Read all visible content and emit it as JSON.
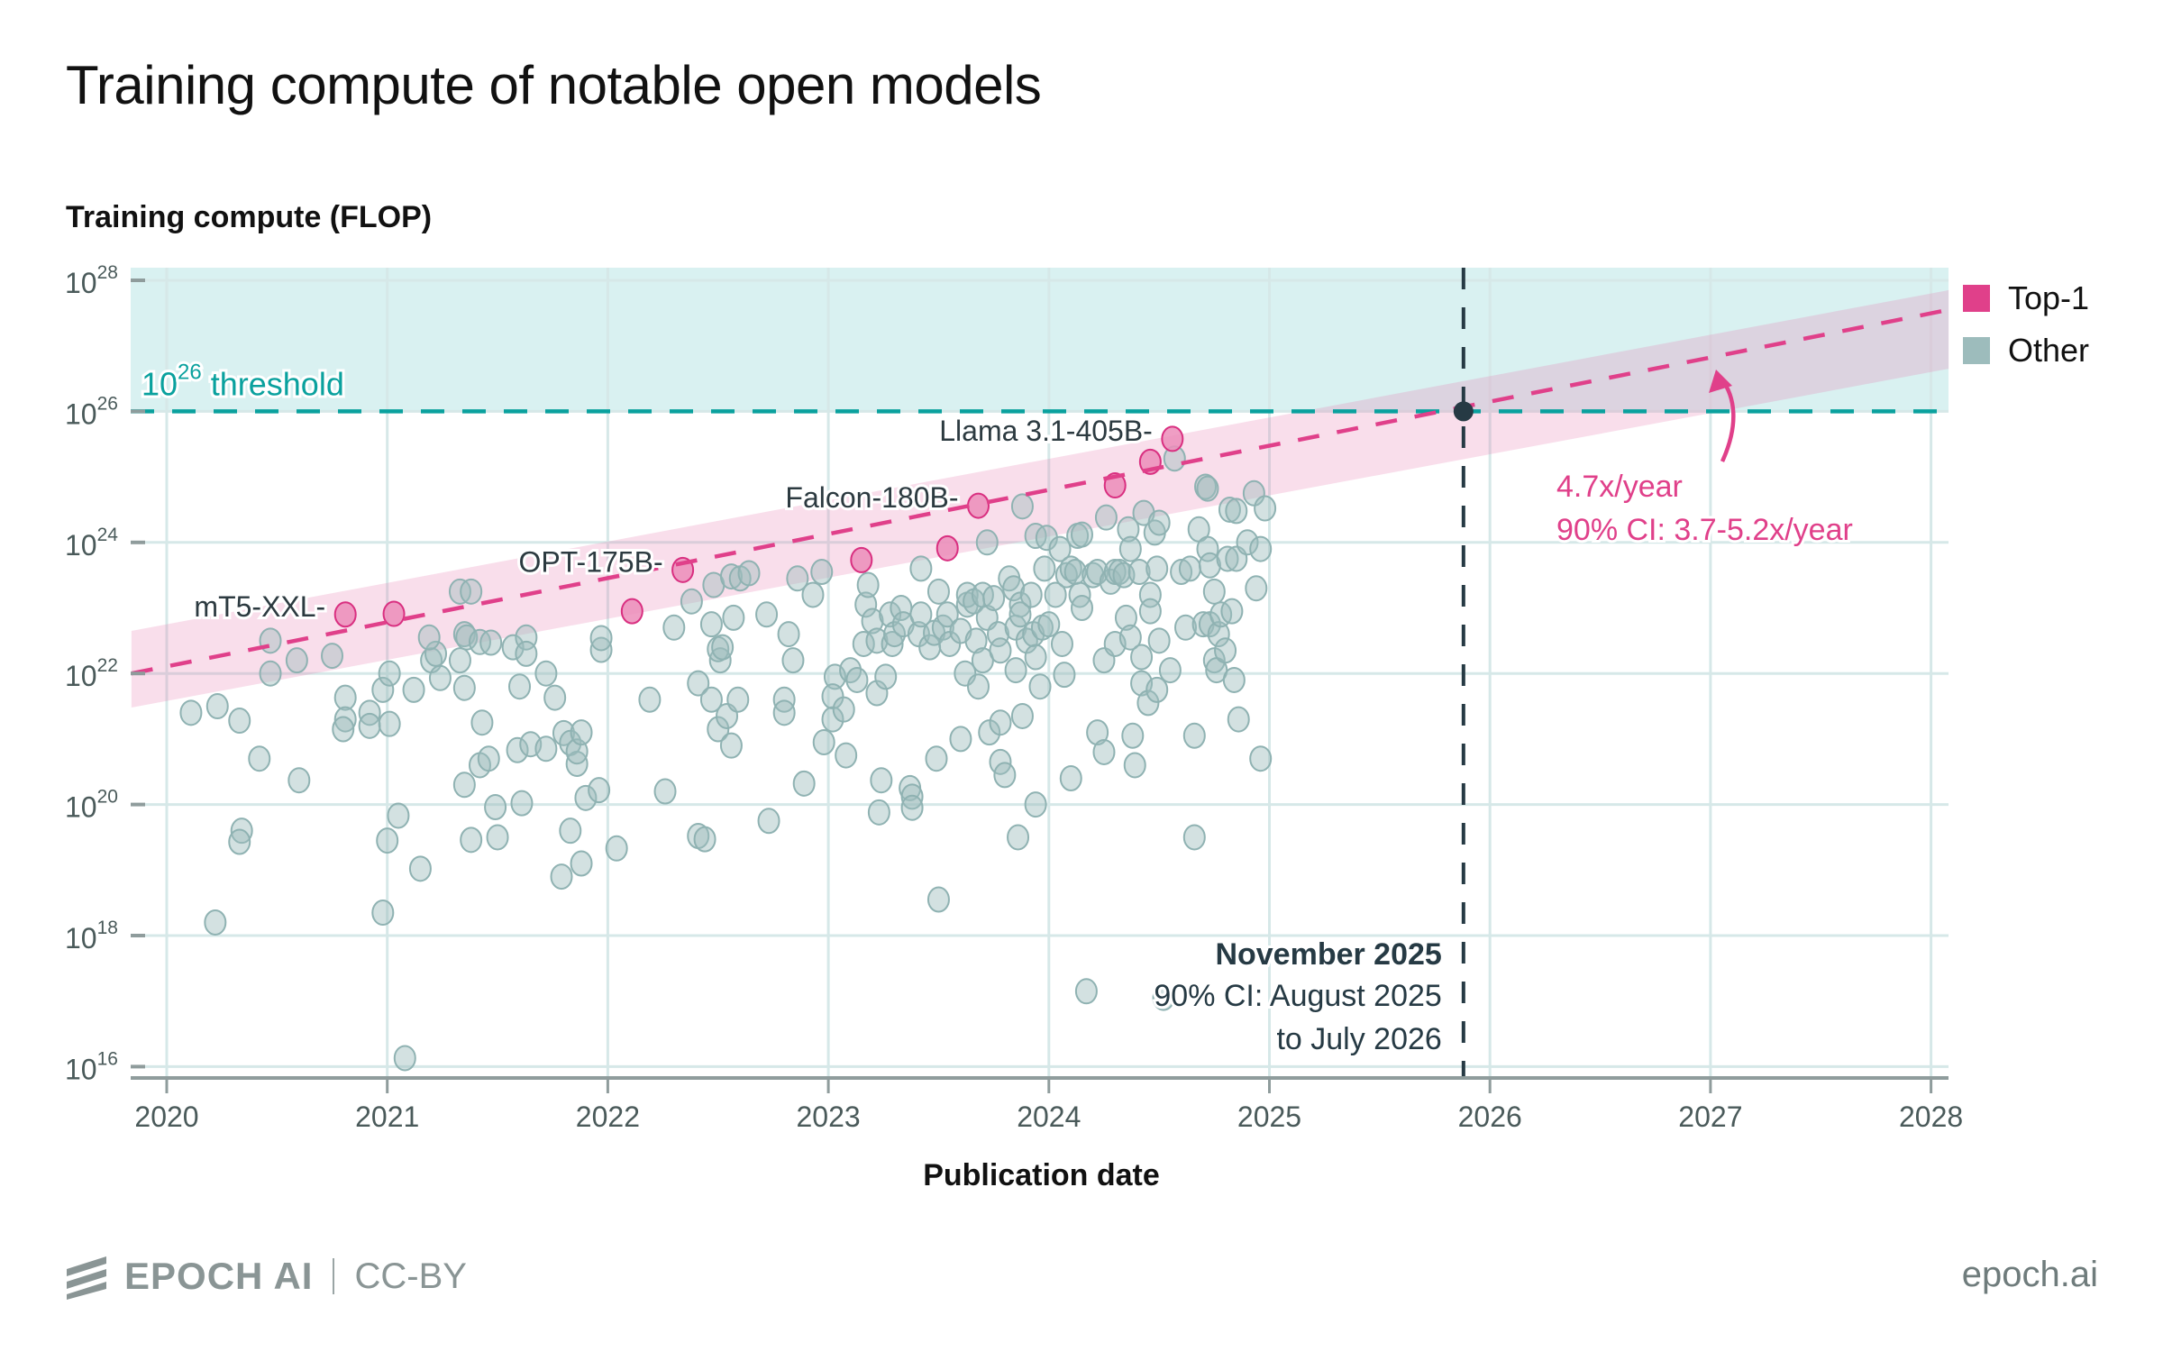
{
  "title": "Training compute of notable open models",
  "footer": {
    "brand": "EPOCH AI",
    "license": "CC-BY",
    "site": "epoch.ai"
  },
  "colors": {
    "top1": "#e0408a",
    "other": "#9dbcbc",
    "threshold": "#0aa19e",
    "threshold_fill": "#d9f1f1",
    "trend_band": "#f7d6e6",
    "projection_marker": "#263a44"
  },
  "chart_data": {
    "type": "scatter",
    "title": "Training compute of notable open models",
    "xlabel": "Publication date",
    "ylabel": "Training compute (FLOP)",
    "xlim": [
      2019.84,
      2028.08
    ],
    "ylim_log10": [
      15.8,
      28.2
    ],
    "y_scale": "log",
    "x_ticks": [
      "2020",
      "2021",
      "2022",
      "2023",
      "2024",
      "2025",
      "2026",
      "2027",
      "2028"
    ],
    "x_tick_values": [
      2020,
      2021,
      2022,
      2023,
      2024,
      2025,
      2026,
      2027,
      2028
    ],
    "y_ticks": [
      {
        "base": "10",
        "exp": "16",
        "value": 16
      },
      {
        "base": "10",
        "exp": "18",
        "value": 18
      },
      {
        "base": "10",
        "exp": "20",
        "value": 20
      },
      {
        "base": "10",
        "exp": "22",
        "value": 22
      },
      {
        "base": "10",
        "exp": "24",
        "value": 24
      },
      {
        "base": "10",
        "exp": "26",
        "value": 26
      },
      {
        "base": "10",
        "exp": "28",
        "value": 28
      }
    ],
    "grid": true,
    "legend": {
      "placement": "top-right",
      "entries": [
        {
          "label": "Top-1",
          "key": "top1"
        },
        {
          "label": "Other",
          "key": "other"
        }
      ]
    },
    "threshold": {
      "log10": 26,
      "label_base": "10",
      "label_exp": "26",
      "label_suffix": "threshold"
    },
    "trend": {
      "x_start": 2019.84,
      "log10_start": 22.0,
      "x_end": 2028.08,
      "log10_end": 27.55,
      "band_start": [
        21.48,
        22.65
      ],
      "band_end": [
        26.65,
        27.85
      ],
      "band_crossing_x": 2025.88,
      "annotation": [
        "4.7x/year",
        "90% CI: 3.7-5.2x/year"
      ]
    },
    "projection": {
      "x": 2025.88,
      "log10": 26.0,
      "annotation_title": "November 2025",
      "annotation_lines": [
        "90% CI: August 2025",
        "to July 2026"
      ]
    },
    "labels": [
      {
        "text": "mT5-XXL",
        "x": 2020.81,
        "log10": 22.9
      },
      {
        "text": "OPT-175B",
        "x": 2022.34,
        "log10": 23.58
      },
      {
        "text": "Falcon-180B",
        "x": 2023.68,
        "log10": 24.56
      },
      {
        "text": "Llama 3.1-405B",
        "x": 2024.56,
        "log10": 25.58
      }
    ],
    "series": [
      {
        "name": "Top-1",
        "key": "top1",
        "points": [
          [
            2020.81,
            22.9
          ],
          [
            2021.03,
            22.91
          ],
          [
            2022.11,
            22.95
          ],
          [
            2022.34,
            23.58
          ],
          [
            2023.15,
            23.73
          ],
          [
            2023.54,
            23.91
          ],
          [
            2023.68,
            24.56
          ],
          [
            2024.3,
            24.87
          ],
          [
            2024.46,
            25.23
          ],
          [
            2024.56,
            25.58
          ]
        ]
      },
      {
        "name": "Other",
        "key": "other",
        "points": [
          [
            2020.11,
            21.4
          ],
          [
            2020.23,
            21.5
          ],
          [
            2020.33,
            21.28
          ],
          [
            2020.42,
            20.7
          ],
          [
            2020.6,
            20.37
          ],
          [
            2020.22,
            18.2
          ],
          [
            2020.34,
            19.6
          ],
          [
            2020.33,
            19.43
          ],
          [
            2020.47,
            22.5
          ],
          [
            2020.47,
            22.0
          ],
          [
            2020.59,
            22.2
          ],
          [
            2020.75,
            22.27
          ],
          [
            2020.81,
            21.63
          ],
          [
            2020.81,
            21.3
          ],
          [
            2020.8,
            21.15
          ],
          [
            2020.92,
            21.4
          ],
          [
            2020.92,
            21.2
          ],
          [
            2020.98,
            21.75
          ],
          [
            2021.01,
            22.0
          ],
          [
            2021.01,
            21.23
          ],
          [
            2020.98,
            18.35
          ],
          [
            2021.05,
            19.83
          ],
          [
            2021.0,
            19.45
          ],
          [
            2021.08,
            16.13
          ],
          [
            2021.15,
            19.02
          ],
          [
            2021.12,
            21.75
          ],
          [
            2021.2,
            22.2
          ],
          [
            2021.22,
            22.3
          ],
          [
            2021.19,
            22.55
          ],
          [
            2021.24,
            21.93
          ],
          [
            2021.33,
            23.25
          ],
          [
            2021.35,
            22.6
          ],
          [
            2021.36,
            22.55
          ],
          [
            2021.38,
            23.25
          ],
          [
            2021.33,
            22.2
          ],
          [
            2021.35,
            21.78
          ],
          [
            2021.42,
            22.48
          ],
          [
            2021.47,
            22.47
          ],
          [
            2021.43,
            21.25
          ],
          [
            2021.35,
            20.3
          ],
          [
            2021.42,
            20.6
          ],
          [
            2021.46,
            20.7
          ],
          [
            2021.38,
            19.46
          ],
          [
            2021.49,
            19.96
          ],
          [
            2021.5,
            19.5
          ],
          [
            2021.57,
            22.4
          ],
          [
            2021.6,
            21.8
          ],
          [
            2021.63,
            22.55
          ],
          [
            2021.63,
            22.3
          ],
          [
            2021.59,
            20.83
          ],
          [
            2021.65,
            20.92
          ],
          [
            2021.61,
            20.02
          ],
          [
            2021.72,
            20.85
          ],
          [
            2021.72,
            22.0
          ],
          [
            2021.76,
            21.63
          ],
          [
            2021.8,
            21.09
          ],
          [
            2021.83,
            20.94
          ],
          [
            2021.86,
            20.62
          ],
          [
            2021.86,
            20.81
          ],
          [
            2021.88,
            21.1
          ],
          [
            2021.83,
            19.6
          ],
          [
            2021.79,
            18.9
          ],
          [
            2021.88,
            19.1
          ],
          [
            2021.9,
            20.1
          ],
          [
            2021.96,
            20.22
          ],
          [
            2021.97,
            22.36
          ],
          [
            2021.97,
            22.54
          ],
          [
            2022.04,
            19.33
          ],
          [
            2022.19,
            21.6
          ],
          [
            2022.26,
            20.2
          ],
          [
            2022.3,
            22.7
          ],
          [
            2022.38,
            23.1
          ],
          [
            2022.41,
            19.52
          ],
          [
            2022.44,
            19.47
          ],
          [
            2022.41,
            21.85
          ],
          [
            2022.47,
            21.6
          ],
          [
            2022.47,
            22.75
          ],
          [
            2022.48,
            23.35
          ],
          [
            2022.51,
            22.2
          ],
          [
            2022.5,
            22.37
          ],
          [
            2022.52,
            22.4
          ],
          [
            2022.5,
            21.15
          ],
          [
            2022.54,
            21.35
          ],
          [
            2022.56,
            20.9
          ],
          [
            2022.56,
            23.48
          ],
          [
            2022.6,
            23.45
          ],
          [
            2022.64,
            23.53
          ],
          [
            2022.57,
            22.85
          ],
          [
            2022.59,
            21.6
          ],
          [
            2022.72,
            22.9
          ],
          [
            2022.73,
            19.75
          ],
          [
            2022.8,
            21.6
          ],
          [
            2022.82,
            22.6
          ],
          [
            2022.84,
            22.2
          ],
          [
            2022.8,
            21.4
          ],
          [
            2022.89,
            20.32
          ],
          [
            2022.93,
            23.2
          ],
          [
            2022.86,
            23.45
          ],
          [
            2022.97,
            23.55
          ],
          [
            2022.98,
            20.95
          ],
          [
            2023.03,
            21.95
          ],
          [
            2023.02,
            21.65
          ],
          [
            2023.02,
            21.3
          ],
          [
            2023.08,
            20.75
          ],
          [
            2023.07,
            21.45
          ],
          [
            2023.1,
            22.05
          ],
          [
            2023.13,
            21.9
          ],
          [
            2023.16,
            22.45
          ],
          [
            2023.17,
            23.05
          ],
          [
            2023.18,
            23.35
          ],
          [
            2023.2,
            22.8
          ],
          [
            2023.22,
            22.5
          ],
          [
            2023.22,
            21.7
          ],
          [
            2023.26,
            21.95
          ],
          [
            2023.24,
            20.37
          ],
          [
            2023.23,
            19.88
          ],
          [
            2023.28,
            22.9
          ],
          [
            2023.29,
            22.45
          ],
          [
            2023.3,
            22.6
          ],
          [
            2023.33,
            23.0
          ],
          [
            2023.34,
            22.75
          ],
          [
            2023.37,
            20.25
          ],
          [
            2023.38,
            20.12
          ],
          [
            2023.38,
            19.95
          ],
          [
            2023.41,
            22.6
          ],
          [
            2023.42,
            22.9
          ],
          [
            2023.42,
            23.6
          ],
          [
            2023.46,
            22.4
          ],
          [
            2023.48,
            22.62
          ],
          [
            2023.5,
            23.25
          ],
          [
            2023.52,
            22.7
          ],
          [
            2023.49,
            20.7
          ],
          [
            2023.5,
            18.55
          ],
          [
            2023.55,
            22.45
          ],
          [
            2023.54,
            22.9
          ],
          [
            2023.6,
            22.65
          ],
          [
            2023.62,
            22.0
          ],
          [
            2023.6,
            21.0
          ],
          [
            2023.63,
            23.05
          ],
          [
            2023.63,
            23.2
          ],
          [
            2023.66,
            23.1
          ],
          [
            2023.67,
            22.5
          ],
          [
            2023.68,
            21.8
          ],
          [
            2023.7,
            22.2
          ],
          [
            2023.7,
            23.2
          ],
          [
            2023.72,
            22.85
          ],
          [
            2023.73,
            21.1
          ],
          [
            2023.72,
            24.0
          ],
          [
            2023.75,
            23.15
          ],
          [
            2023.77,
            22.6
          ],
          [
            2023.78,
            22.35
          ],
          [
            2023.78,
            21.25
          ],
          [
            2023.78,
            20.65
          ],
          [
            2023.8,
            20.45
          ],
          [
            2023.82,
            23.45
          ],
          [
            2023.84,
            23.3
          ],
          [
            2023.85,
            22.7
          ],
          [
            2023.85,
            22.05
          ],
          [
            2023.87,
            23.05
          ],
          [
            2023.87,
            22.9
          ],
          [
            2023.88,
            21.35
          ],
          [
            2023.86,
            19.5
          ],
          [
            2023.88,
            24.55
          ],
          [
            2023.9,
            22.5
          ],
          [
            2023.92,
            23.2
          ],
          [
            2023.93,
            22.6
          ],
          [
            2023.94,
            22.25
          ],
          [
            2023.94,
            20.0
          ],
          [
            2023.94,
            24.1
          ],
          [
            2023.96,
            21.8
          ],
          [
            2023.97,
            22.7
          ],
          [
            2023.98,
            23.6
          ],
          [
            2023.99,
            24.07
          ],
          [
            2024.0,
            22.75
          ],
          [
            2024.03,
            23.2
          ],
          [
            2024.05,
            23.9
          ],
          [
            2024.06,
            22.45
          ],
          [
            2024.07,
            21.98
          ],
          [
            2024.08,
            23.5
          ],
          [
            2024.1,
            23.6
          ],
          [
            2024.12,
            23.55
          ],
          [
            2024.14,
            23.2
          ],
          [
            2024.15,
            23.0
          ],
          [
            2024.13,
            24.1
          ],
          [
            2024.15,
            24.12
          ],
          [
            2024.1,
            20.4
          ],
          [
            2024.17,
            17.15
          ],
          [
            2024.2,
            23.5
          ],
          [
            2024.22,
            23.55
          ],
          [
            2024.22,
            21.1
          ],
          [
            2024.25,
            20.8
          ],
          [
            2024.26,
            24.38
          ],
          [
            2024.25,
            22.2
          ],
          [
            2024.28,
            23.4
          ],
          [
            2024.3,
            23.55
          ],
          [
            2024.3,
            22.45
          ],
          [
            2024.32,
            23.55
          ],
          [
            2024.34,
            23.5
          ],
          [
            2024.35,
            22.85
          ],
          [
            2024.36,
            24.2
          ],
          [
            2024.37,
            23.9
          ],
          [
            2024.37,
            22.55
          ],
          [
            2024.38,
            21.05
          ],
          [
            2024.39,
            20.6
          ],
          [
            2024.41,
            23.55
          ],
          [
            2024.42,
            22.25
          ],
          [
            2024.42,
            21.85
          ],
          [
            2024.43,
            24.45
          ],
          [
            2024.45,
            21.55
          ],
          [
            2024.46,
            23.2
          ],
          [
            2024.46,
            22.95
          ],
          [
            2024.48,
            24.15
          ],
          [
            2024.49,
            21.75
          ],
          [
            2024.49,
            23.6
          ],
          [
            2024.5,
            22.5
          ],
          [
            2024.5,
            24.3
          ],
          [
            2024.52,
            17.05
          ],
          [
            2024.55,
            22.05
          ],
          [
            2024.57,
            25.28
          ],
          [
            2024.6,
            23.55
          ],
          [
            2024.62,
            22.7
          ],
          [
            2024.64,
            23.6
          ],
          [
            2024.66,
            21.05
          ],
          [
            2024.66,
            19.5
          ],
          [
            2024.68,
            24.2
          ],
          [
            2024.7,
            22.75
          ],
          [
            2024.71,
            24.85
          ],
          [
            2024.72,
            24.82
          ],
          [
            2024.72,
            23.9
          ],
          [
            2024.73,
            23.65
          ],
          [
            2024.73,
            22.75
          ],
          [
            2024.75,
            23.25
          ],
          [
            2024.75,
            22.2
          ],
          [
            2024.76,
            22.05
          ],
          [
            2024.77,
            22.6
          ],
          [
            2024.78,
            22.9
          ],
          [
            2024.8,
            22.35
          ],
          [
            2024.81,
            23.75
          ],
          [
            2024.82,
            24.5
          ],
          [
            2024.83,
            22.95
          ],
          [
            2024.84,
            21.9
          ],
          [
            2024.85,
            24.48
          ],
          [
            2024.85,
            23.75
          ],
          [
            2024.86,
            21.3
          ],
          [
            2024.9,
            24.0
          ],
          [
            2024.93,
            24.75
          ],
          [
            2024.94,
            23.3
          ],
          [
            2024.96,
            23.9
          ],
          [
            2024.96,
            20.7
          ],
          [
            2024.98,
            24.52
          ]
        ]
      }
    ]
  }
}
